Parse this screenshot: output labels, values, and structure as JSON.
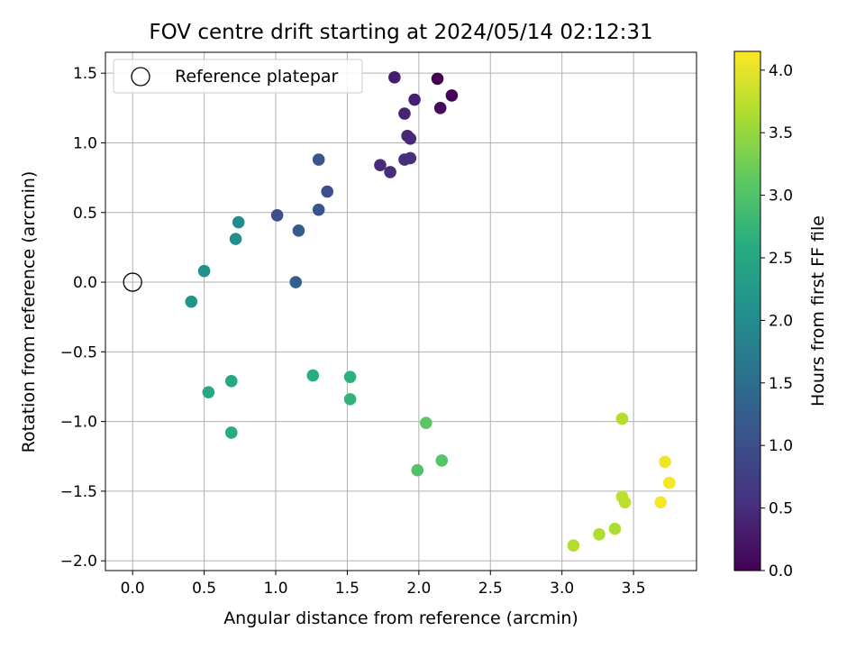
{
  "chart_data": {
    "type": "scatter",
    "title": "FOV centre drift starting at 2024/05/14 02:12:31",
    "xlabel": "Angular distance from reference (arcmin)",
    "ylabel": "Rotation from reference (arcmin)",
    "xlim": [
      -0.19,
      3.94
    ],
    "ylim": [
      -2.07,
      1.65
    ],
    "xticks": [
      0.0,
      0.5,
      1.0,
      1.5,
      2.0,
      2.5,
      3.0,
      3.5
    ],
    "xtick_labels": [
      "0.0",
      "0.5",
      "1.0",
      "1.5",
      "2.0",
      "2.5",
      "3.0",
      "3.5"
    ],
    "yticks": [
      -2.0,
      -1.5,
      -1.0,
      -0.5,
      0.0,
      0.5,
      1.0,
      1.5
    ],
    "ytick_labels": [
      "−2.0",
      "−1.5",
      "−1.0",
      "−0.5",
      "0.0",
      "0.5",
      "1.0",
      "1.5"
    ],
    "grid": true,
    "legend": {
      "placement": "top-left",
      "entries": [
        {
          "label": "Reference platepar",
          "marker": "hollow-circle",
          "color": "#000000"
        }
      ]
    },
    "reference_point": {
      "x": 0.0,
      "y": 0.0
    },
    "colorbar": {
      "label": "Hours from first FF file",
      "min": 0.0,
      "max": 4.15,
      "colormap": "viridis",
      "ticks": [
        0.0,
        0.5,
        1.0,
        1.5,
        2.0,
        2.5,
        3.0,
        3.5,
        4.0
      ],
      "tick_labels": [
        "0.0",
        "0.5",
        "1.0",
        "1.5",
        "2.0",
        "2.5",
        "3.0",
        "3.5",
        "4.0"
      ]
    },
    "points": [
      {
        "x": 2.13,
        "y": 1.46,
        "hours": 0.0
      },
      {
        "x": 2.23,
        "y": 1.34,
        "hours": 0.05
      },
      {
        "x": 2.15,
        "y": 1.25,
        "hours": 0.1
      },
      {
        "x": 1.83,
        "y": 1.47,
        "hours": 0.3
      },
      {
        "x": 1.97,
        "y": 1.31,
        "hours": 0.35
      },
      {
        "x": 1.9,
        "y": 1.21,
        "hours": 0.4
      },
      {
        "x": 1.92,
        "y": 1.05,
        "hours": 0.42
      },
      {
        "x": 1.94,
        "y": 1.03,
        "hours": 0.45
      },
      {
        "x": 1.73,
        "y": 0.84,
        "hours": 0.48
      },
      {
        "x": 1.8,
        "y": 0.79,
        "hours": 0.5
      },
      {
        "x": 1.9,
        "y": 0.88,
        "hours": 0.52
      },
      {
        "x": 1.94,
        "y": 0.89,
        "hours": 0.55
      },
      {
        "x": 1.36,
        "y": 0.65,
        "hours": 1.0
      },
      {
        "x": 1.3,
        "y": 0.88,
        "hours": 1.1
      },
      {
        "x": 1.01,
        "y": 0.48,
        "hours": 1.0
      },
      {
        "x": 1.3,
        "y": 0.52,
        "hours": 1.1
      },
      {
        "x": 1.16,
        "y": 0.37,
        "hours": 1.2
      },
      {
        "x": 1.14,
        "y": 0.0,
        "hours": 1.3
      },
      {
        "x": 0.74,
        "y": 0.43,
        "hours": 2.0
      },
      {
        "x": 0.72,
        "y": 0.31,
        "hours": 2.05
      },
      {
        "x": 0.5,
        "y": 0.08,
        "hours": 2.1
      },
      {
        "x": 0.41,
        "y": -0.14,
        "hours": 2.15
      },
      {
        "x": 0.53,
        "y": -0.79,
        "hours": 2.5
      },
      {
        "x": 0.69,
        "y": -0.71,
        "hours": 2.5
      },
      {
        "x": 0.69,
        "y": -1.08,
        "hours": 2.55
      },
      {
        "x": 1.26,
        "y": -0.67,
        "hours": 2.6
      },
      {
        "x": 1.52,
        "y": -0.68,
        "hours": 2.65
      },
      {
        "x": 1.52,
        "y": -0.84,
        "hours": 2.7
      },
      {
        "x": 2.05,
        "y": -1.01,
        "hours": 3.1
      },
      {
        "x": 1.99,
        "y": -1.35,
        "hours": 3.0
      },
      {
        "x": 2.16,
        "y": -1.28,
        "hours": 3.05
      },
      {
        "x": 3.42,
        "y": -0.98,
        "hours": 3.7
      },
      {
        "x": 3.08,
        "y": -1.89,
        "hours": 3.7
      },
      {
        "x": 3.26,
        "y": -1.81,
        "hours": 3.65
      },
      {
        "x": 3.37,
        "y": -1.77,
        "hours": 3.65
      },
      {
        "x": 3.42,
        "y": -1.54,
        "hours": 3.75
      },
      {
        "x": 3.44,
        "y": -1.58,
        "hours": 3.75
      },
      {
        "x": 3.72,
        "y": -1.29,
        "hours": 4.05
      },
      {
        "x": 3.75,
        "y": -1.44,
        "hours": 4.1
      },
      {
        "x": 3.69,
        "y": -1.58,
        "hours": 4.1
      }
    ]
  }
}
